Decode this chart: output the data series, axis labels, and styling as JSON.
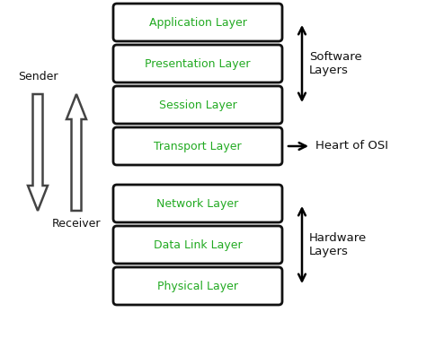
{
  "layers": [
    "Application Layer",
    "Presentation Layer",
    "Session Layer",
    "Transport Layer",
    "Network Layer",
    "Data Link Layer",
    "Physical Layer"
  ],
  "box_color": "#ffffff",
  "box_edge_color": "#111111",
  "text_color": "#22aa22",
  "label_color": "#111111",
  "background_color": "#ffffff",
  "software_layers_label": "Software\nLayers",
  "hardware_layers_label": "Hardware\nLayers",
  "heart_label": "Heart of OSI",
  "sender_label": "Sender",
  "receiver_label": "Receiver"
}
